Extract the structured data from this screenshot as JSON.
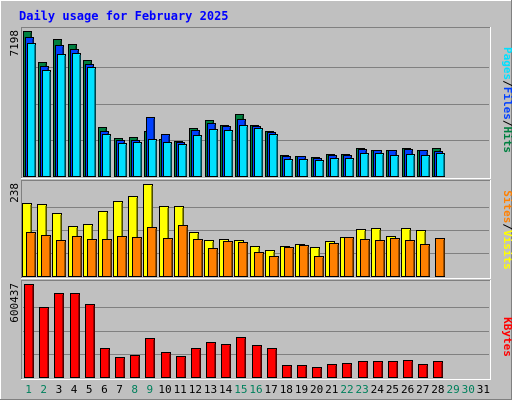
{
  "title": "Daily usage for February 2025",
  "colors": {
    "background": "#c0c0c0",
    "title": "#0000ff",
    "hits": "#008040",
    "files": "#0040ff",
    "pages": "#00e0ff",
    "visits": "#ffff00",
    "sites": "#ff8000",
    "kbytes": "#ff0000",
    "weekend_day": "#00805c",
    "weekday": "#000000"
  },
  "chart_data": [
    {
      "type": "bar",
      "panel": "top",
      "max_label": "7198",
      "ylim": [
        0,
        7198
      ],
      "grid": true,
      "label_parts": [
        "Pages",
        "/",
        "Files",
        "/",
        "Hits"
      ],
      "categories": [
        "1",
        "2",
        "3",
        "4",
        "5",
        "6",
        "7",
        "8",
        "9",
        "10",
        "11",
        "12",
        "13",
        "14",
        "15",
        "16",
        "17",
        "18",
        "19",
        "20",
        "21",
        "22",
        "23",
        "24",
        "25",
        "26",
        "27",
        "28",
        "29",
        "30",
        "31"
      ],
      "series": [
        {
          "name": "Hits",
          "values": [
            7198,
            5680,
            6800,
            6550,
            5780,
            2420,
            1900,
            1950,
            2250,
            1850,
            1760,
            2400,
            2760,
            2550,
            3100,
            2550,
            2240,
            1040,
            1010,
            920,
            1100,
            1100,
            1400,
            1300,
            1300,
            1400,
            1300,
            1400,
            0,
            0,
            0
          ]
        },
        {
          "name": "Files",
          "values": [
            6900,
            5470,
            6480,
            6300,
            5550,
            2250,
            1800,
            1800,
            2950,
            2100,
            1700,
            2300,
            2620,
            2500,
            2830,
            2500,
            2200,
            1000,
            1000,
            900,
            1050,
            1050,
            1350,
            1300,
            1300,
            1350,
            1270,
            1250,
            0,
            0,
            0
          ]
        },
        {
          "name": "Pages",
          "values": [
            6600,
            5250,
            6080,
            6100,
            5400,
            2090,
            1640,
            1700,
            1850,
            1680,
            1580,
            2050,
            2350,
            2300,
            2550,
            2390,
            2100,
            860,
            850,
            780,
            900,
            900,
            1150,
            1150,
            1050,
            1100,
            1020,
            1150,
            0,
            0,
            0
          ]
        }
      ]
    },
    {
      "type": "bar",
      "panel": "middle",
      "max_label": "238",
      "ylim": [
        0,
        238
      ],
      "grid": true,
      "label_parts": [
        "Sites",
        "/",
        "Visits"
      ],
      "categories": [
        "1",
        "2",
        "3",
        "4",
        "5",
        "6",
        "7",
        "8",
        "9",
        "10",
        "11",
        "12",
        "13",
        "14",
        "15",
        "16",
        "17",
        "18",
        "19",
        "20",
        "21",
        "22",
        "23",
        "24",
        "25",
        "26",
        "27",
        "28",
        "29",
        "30",
        "31"
      ],
      "series": [
        {
          "name": "Visits",
          "values": [
            190,
            187,
            163,
            130,
            135,
            167,
            195,
            207,
            238,
            180,
            180,
            113,
            93,
            95,
            93,
            77,
            67,
            77,
            83,
            75,
            90,
            102,
            122,
            123,
            103,
            123,
            120,
            0,
            0,
            0,
            0
          ]
        },
        {
          "name": "Sites",
          "values": [
            115,
            105,
            93,
            103,
            97,
            95,
            103,
            100,
            128,
            98,
            133,
            97,
            72,
            90,
            87,
            63,
            53,
            75,
            80,
            52,
            85,
            100,
            95,
            93,
            98,
            93,
            83,
            98,
            0,
            0,
            0
          ]
        }
      ]
    },
    {
      "type": "bar",
      "panel": "bottom",
      "max_label": "600437",
      "ylim": [
        0,
        600437
      ],
      "grid": true,
      "label_parts": [
        "KBytes"
      ],
      "categories": [
        "1",
        "2",
        "3",
        "4",
        "5",
        "6",
        "7",
        "8",
        "9",
        "10",
        "11",
        "12",
        "13",
        "14",
        "15",
        "16",
        "17",
        "18",
        "19",
        "20",
        "21",
        "22",
        "23",
        "24",
        "25",
        "26",
        "27",
        "28",
        "29",
        "30",
        "31"
      ],
      "series": [
        {
          "name": "KBytes",
          "values": [
            600437,
            455000,
            540000,
            540000,
            470000,
            185000,
            130000,
            140000,
            250000,
            160000,
            135000,
            190000,
            225000,
            215000,
            260000,
            205000,
            185000,
            80000,
            80000,
            62000,
            82000,
            92000,
            102000,
            102000,
            102000,
            112000,
            82000,
            102000,
            0,
            0,
            0
          ]
        }
      ]
    }
  ],
  "x_axis": {
    "days": [
      "1",
      "2",
      "3",
      "4",
      "5",
      "6",
      "7",
      "8",
      "9",
      "10",
      "11",
      "12",
      "13",
      "14",
      "15",
      "16",
      "17",
      "18",
      "19",
      "20",
      "21",
      "22",
      "23",
      "24",
      "25",
      "26",
      "27",
      "28",
      "29",
      "30",
      "31"
    ],
    "weekend": [
      true,
      true,
      false,
      false,
      false,
      false,
      false,
      true,
      true,
      false,
      false,
      false,
      false,
      false,
      true,
      true,
      false,
      false,
      false,
      false,
      false,
      true,
      true,
      false,
      false,
      false,
      false,
      false,
      true,
      true,
      false
    ]
  }
}
